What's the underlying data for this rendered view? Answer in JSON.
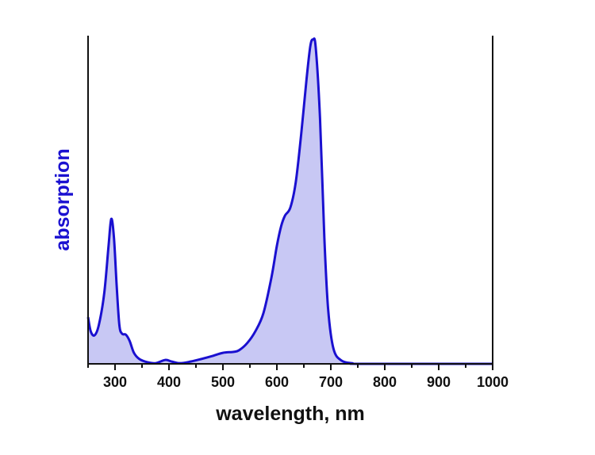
{
  "chart_data": {
    "type": "area",
    "title": "",
    "xlabel": "wavelength, nm",
    "ylabel": "absorption",
    "xlim": [
      250,
      1000
    ],
    "ylim": [
      0,
      1.012
    ],
    "x_ticks": [
      300,
      400,
      500,
      600,
      700,
      800,
      900,
      1000
    ],
    "x_minor_step": 50,
    "y_ticks": [],
    "grid": false,
    "colors": {
      "line": "#1a10d0",
      "fill": "#c8c8f4",
      "ylabel": "#1a10d0",
      "axis": "#111111"
    },
    "series": [
      {
        "x": [
          250,
          255,
          262,
          270,
          280,
          288,
          293,
          298,
          303,
          308,
          313,
          320,
          327,
          335,
          345,
          360,
          375,
          393,
          405,
          420,
          440,
          460,
          480,
          500,
          520,
          530,
          545,
          560,
          575,
          590,
          600,
          608,
          615,
          625,
          635,
          645,
          655,
          662,
          667,
          672,
          680,
          688,
          695,
          705,
          720,
          740,
          760,
          1000
        ],
        "y": [
          0.144,
          0.1,
          0.088,
          0.12,
          0.218,
          0.364,
          0.447,
          0.389,
          0.242,
          0.12,
          0.093,
          0.09,
          0.071,
          0.034,
          0.015,
          0.005,
          0.002,
          0.012,
          0.007,
          0.002,
          0.007,
          0.015,
          0.024,
          0.034,
          0.037,
          0.042,
          0.064,
          0.1,
          0.156,
          0.267,
          0.364,
          0.425,
          0.457,
          0.482,
          0.56,
          0.707,
          0.878,
          0.98,
          1.0,
          0.976,
          0.756,
          0.389,
          0.169,
          0.046,
          0.01,
          0.002,
          0,
          0
        ]
      }
    ]
  }
}
